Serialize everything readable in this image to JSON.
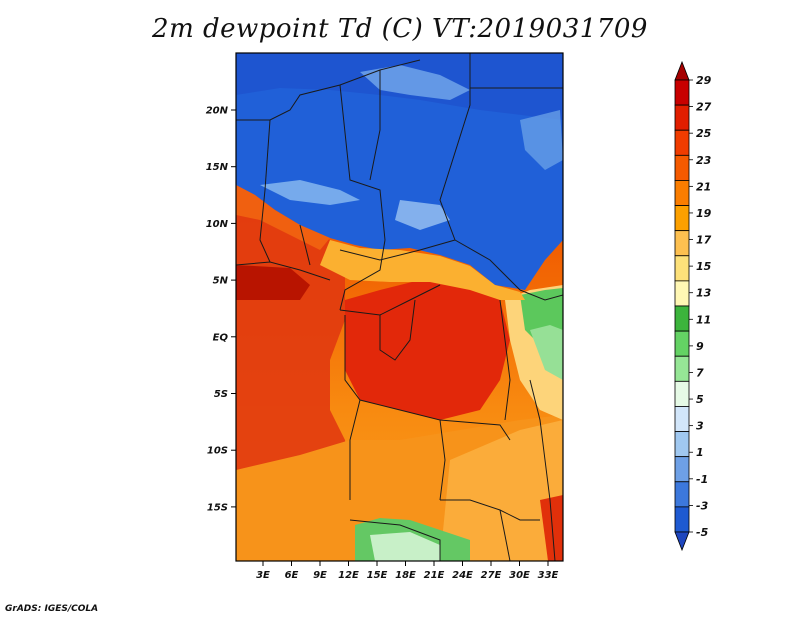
{
  "title": "2m dewpoint Td (C) VT:2019031709",
  "footer": "GrADS: IGES/COLA",
  "map": {
    "lat_labels": [
      "20N",
      "15N",
      "10N",
      "5N",
      "EQ",
      "5S",
      "10S",
      "15S"
    ],
    "lon_labels": [
      "3E",
      "6E",
      "9E",
      "12E",
      "15E",
      "18E",
      "21E",
      "24E",
      "27E",
      "30E",
      "33E"
    ]
  },
  "colorbar": {
    "labels": [
      "29",
      "27",
      "25",
      "23",
      "21",
      "19",
      "17",
      "15",
      "13",
      "11",
      "9",
      "7",
      "5",
      "3",
      "1",
      "-1",
      "-3",
      "-5"
    ],
    "colors": [
      "#a50000",
      "#c80000",
      "#e11e00",
      "#f03c00",
      "#f55a00",
      "#fa7d00",
      "#fca000",
      "#fdc050",
      "#fde17a",
      "#fff7b4",
      "#3cb43c",
      "#64d264",
      "#96e696",
      "#e6fae6",
      "#d2e6fa",
      "#a0c8f0",
      "#6ea0e6",
      "#3c78dc",
      "#1e5ad2",
      "#1e46be"
    ]
  }
}
